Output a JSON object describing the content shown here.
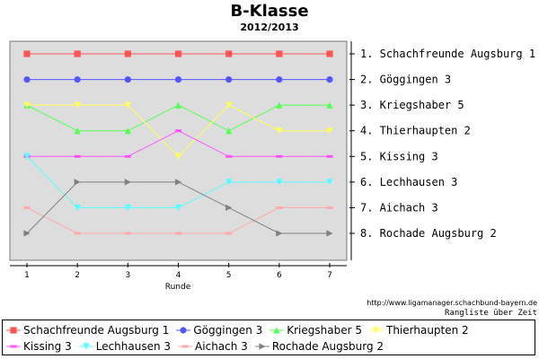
{
  "header": {
    "title": "B-Klasse",
    "subtitle": "2012/2013"
  },
  "source": {
    "url": "http://www.ligamanager.schachbund-bayern.de",
    "note": "Rangliste über Zeit"
  },
  "chart_data": {
    "type": "line",
    "title": "B-Klasse",
    "subtitle": "2012/2013",
    "xlabel": "Runde",
    "ylabel": "",
    "x": [
      1,
      2,
      3,
      4,
      5,
      6,
      7
    ],
    "xlim": [
      1,
      7
    ],
    "ylim": [
      1,
      8
    ],
    "y_inverted": true,
    "grid": false,
    "background": "#dddddd",
    "rank_labels": [
      "1. Schachfreunde Augsburg 1",
      "2. Göggingen 3",
      "3. Kriegshaber  5",
      "4. Thierhaupten 2",
      "5. Kissing 3",
      "6. Lechhausen 3",
      "7. Aichach 3",
      "8. Rochade Augsburg 2"
    ],
    "legend_position": "bottom",
    "series": [
      {
        "name": "Schachfreunde Augsburg 1",
        "color": "#ff5555",
        "marker": "square",
        "values": [
          1,
          1,
          1,
          1,
          1,
          1,
          1
        ]
      },
      {
        "name": "Göggingen 3",
        "color": "#5555ff",
        "marker": "circle",
        "values": [
          2,
          2,
          2,
          2,
          2,
          2,
          2
        ]
      },
      {
        "name": "Kriegshaber  5",
        "color": "#55ff55",
        "marker": "triangle-up",
        "values": [
          3,
          4,
          4,
          3,
          4,
          3,
          3
        ]
      },
      {
        "name": "Thierhaupten 2",
        "color": "#ffff55",
        "marker": "triangle-down",
        "values": [
          3,
          3,
          3,
          5,
          3,
          4,
          4
        ]
      },
      {
        "name": "Kissing 3",
        "color": "#ff55ff",
        "marker": "dash",
        "values": [
          5,
          5,
          5,
          4,
          5,
          5,
          5
        ]
      },
      {
        "name": "Lechhausen 3",
        "color": "#55ffff",
        "marker": "triangle-down",
        "values": [
          5,
          7,
          7,
          7,
          6,
          6,
          6
        ]
      },
      {
        "name": "Aichach 3",
        "color": "#ffaaaa",
        "marker": "dash",
        "values": [
          7,
          8,
          8,
          8,
          8,
          7,
          7
        ]
      },
      {
        "name": "Rochade Augsburg 2",
        "color": "#808080",
        "marker": "triangle-right",
        "values": [
          8,
          6,
          6,
          6,
          7,
          8,
          8
        ]
      }
    ]
  }
}
